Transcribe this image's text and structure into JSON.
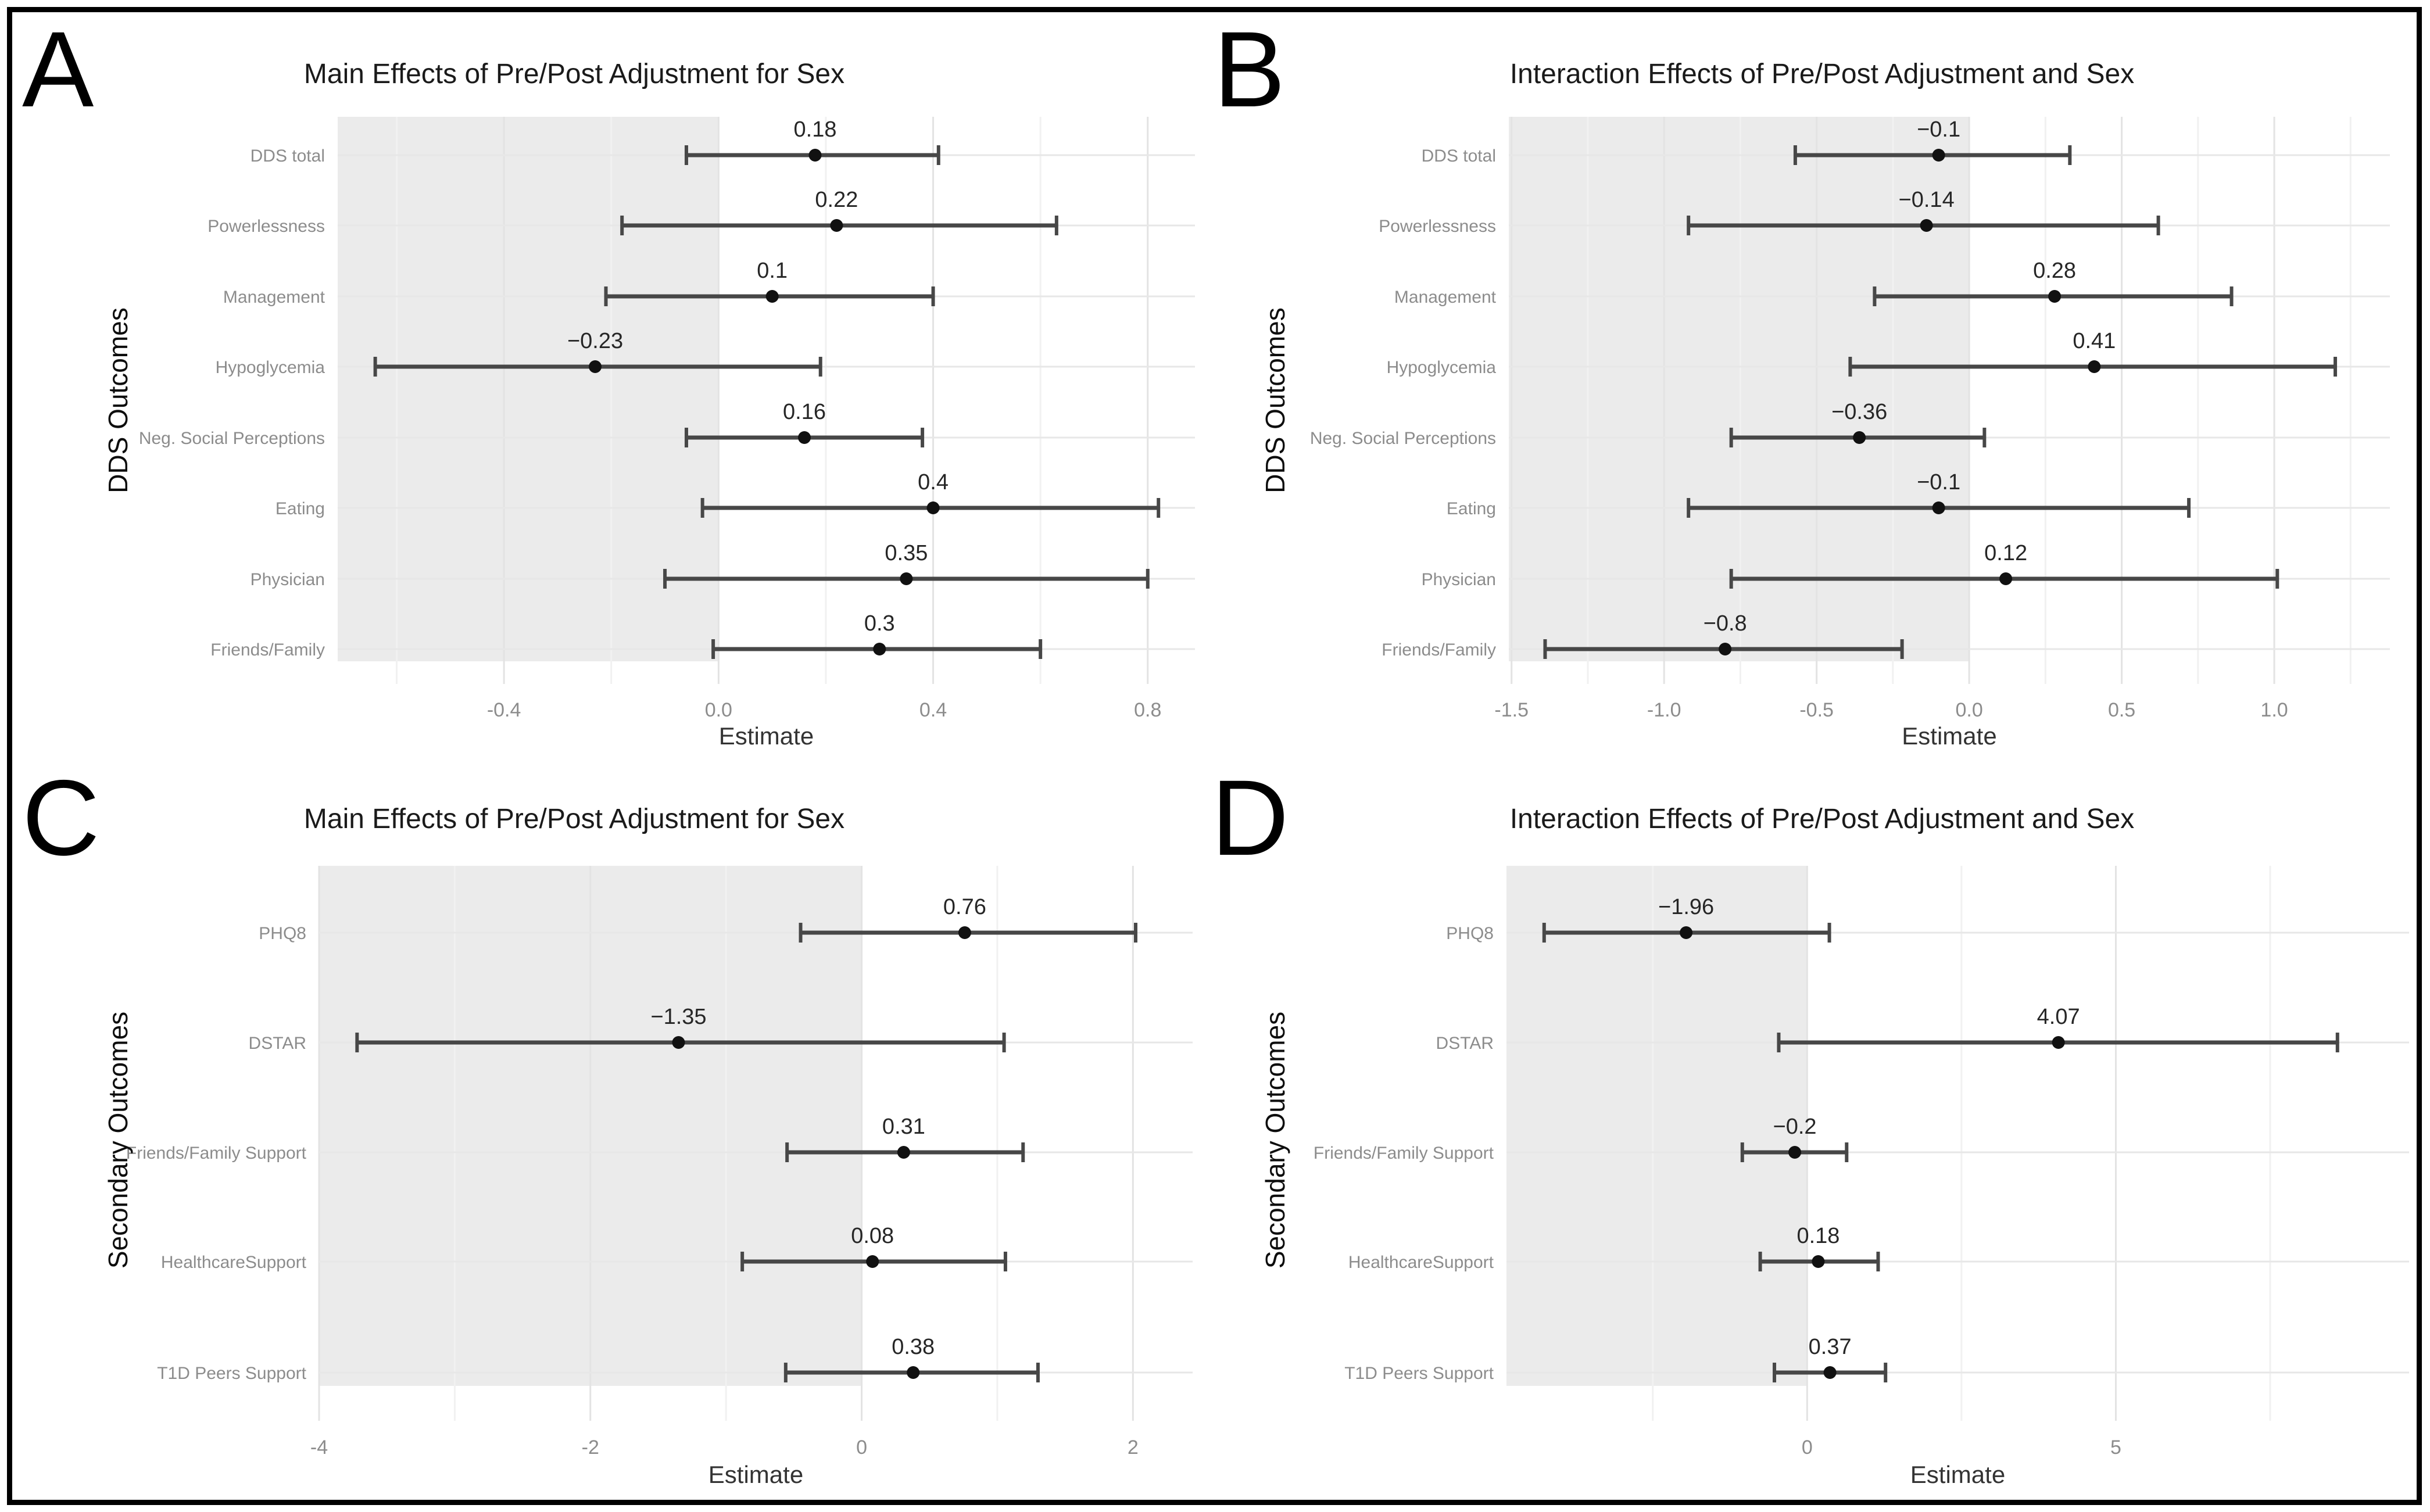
{
  "figure": {
    "background": "#ffffff",
    "border_color": "#000000"
  },
  "colors": {
    "shade": "#ebebeb",
    "grid_major": "#e3e3e3",
    "grid_minor": "#f1f1f1",
    "row_line": "#e7e7e7",
    "bar": "#474747",
    "point": "#111111",
    "value_label": "#262626",
    "axis_text": "#8c8c8c",
    "xlab": "#333333",
    "title": "#1a1a1a"
  },
  "chart_data": [
    {
      "type": "scatter",
      "style": "forest-plot",
      "panel": "A",
      "title": "Main Effects of Pre/Post Adjustment for Sex",
      "xlabel": "Estimate",
      "ylabel": "DDS Outcomes",
      "grid": true,
      "legend": null,
      "categories": [
        "DDS total",
        "Powerlessness",
        "Management",
        "Hypoglycemia",
        "Neg. Social Perceptions",
        "Eating",
        "Physician",
        "Friends/Family"
      ],
      "estimates": [
        0.18,
        0.22,
        0.1,
        -0.23,
        0.16,
        0.4,
        0.35,
        0.3
      ],
      "ci_low": [
        -0.06,
        -0.18,
        -0.21,
        -0.64,
        -0.06,
        -0.03,
        -0.1,
        -0.01
      ],
      "ci_high": [
        0.41,
        0.63,
        0.4,
        0.19,
        0.38,
        0.82,
        0.8,
        0.6
      ],
      "value_labels": [
        "0.18",
        "0.22",
        "0.1",
        "−0.23",
        "0.16",
        "0.4",
        "0.35",
        "0.3"
      ],
      "xlim": [
        -0.71,
        0.888
      ],
      "xticks": [
        {
          "v": -0.4,
          "label": "-0.4"
        },
        {
          "v": 0.0,
          "label": "0.0"
        },
        {
          "v": 0.4,
          "label": "0.4"
        },
        {
          "v": 0.8,
          "label": "0.8"
        }
      ],
      "minor_grid": [
        -0.6,
        -0.2,
        0.2,
        0.6
      ],
      "shade_range": [
        -0.71,
        0
      ]
    },
    {
      "type": "scatter",
      "style": "forest-plot",
      "panel": "B",
      "title": "Interaction Effects of Pre/Post Adjustment and Sex",
      "xlabel": "Estimate",
      "ylabel": "DDS Outcomes",
      "grid": true,
      "legend": null,
      "categories": [
        "DDS total",
        "Powerlessness",
        "Management",
        "Hypoglycemia",
        "Neg. Social Perceptions",
        "Eating",
        "Physician",
        "Friends/Family"
      ],
      "estimates": [
        -0.1,
        -0.14,
        0.28,
        0.41,
        -0.36,
        -0.1,
        0.12,
        -0.8
      ],
      "ci_low": [
        -0.57,
        -0.92,
        -0.31,
        -0.39,
        -0.78,
        -0.92,
        -0.78,
        -1.39
      ],
      "ci_high": [
        0.33,
        0.62,
        0.86,
        1.2,
        0.05,
        0.72,
        1.01,
        -0.22
      ],
      "value_labels": [
        "−0.1",
        "−0.14",
        "0.28",
        "0.41",
        "−0.36",
        "−0.1",
        "0.12",
        "−0.8"
      ],
      "xlim": [
        -1.509,
        1.379
      ],
      "xticks": [
        {
          "v": -1.5,
          "label": "-1.5"
        },
        {
          "v": -1.0,
          "label": "-1.0"
        },
        {
          "v": -0.5,
          "label": "-0.5"
        },
        {
          "v": 0.0,
          "label": "0.0"
        },
        {
          "v": 0.5,
          "label": "0.5"
        },
        {
          "v": 1.0,
          "label": "1.0"
        }
      ],
      "minor_grid": [
        -1.25,
        -0.75,
        -0.25,
        0.25,
        0.75,
        1.25
      ],
      "shade_range": [
        -1.509,
        0
      ]
    },
    {
      "type": "scatter",
      "style": "forest-plot",
      "panel": "C",
      "title": "Main Effects of Pre/Post Adjustment for Sex",
      "xlabel": "Estimate",
      "ylabel": "Secondary Outcomes",
      "grid": true,
      "legend": null,
      "categories": [
        "PHQ8",
        "DSTAR",
        "Friends/Family Support",
        "HealthcareSupport",
        "T1D Peers Support"
      ],
      "estimates": [
        0.76,
        -1.35,
        0.31,
        0.08,
        0.38
      ],
      "ci_low": [
        -0.45,
        -3.72,
        -0.55,
        -0.88,
        -0.56
      ],
      "ci_high": [
        2.02,
        1.05,
        1.19,
        1.06,
        1.3
      ],
      "value_labels": [
        "0.76",
        "−1.35",
        "0.31",
        "0.08",
        "0.38"
      ],
      "xlim": [
        -4.0,
        2.44
      ],
      "xticks": [
        {
          "v": -4,
          "label": "-4"
        },
        {
          "v": -2,
          "label": "-2"
        },
        {
          "v": 0,
          "label": "0"
        },
        {
          "v": 2,
          "label": "2"
        }
      ],
      "minor_grid": [
        -3,
        -1,
        1
      ],
      "shade_range": [
        -4.0,
        0
      ]
    },
    {
      "type": "scatter",
      "style": "forest-plot",
      "panel": "D",
      "title": "Interaction Effects of Pre/Post Adjustment and Sex",
      "xlabel": "Estimate",
      "ylabel": "Secondary Outcomes",
      "grid": true,
      "legend": null,
      "categories": [
        "PHQ8",
        "DSTAR",
        "Friends/Family Support",
        "HealthcareSupport",
        "T1D Peers Support"
      ],
      "estimates": [
        -1.96,
        4.07,
        -0.2,
        0.18,
        0.37
      ],
      "ci_low": [
        -4.26,
        -0.46,
        -1.05,
        -0.76,
        -0.53
      ],
      "ci_high": [
        0.36,
        8.59,
        0.64,
        1.15,
        1.27
      ],
      "value_labels": [
        "−1.96",
        "4.07",
        "−0.2",
        "0.18",
        "0.37"
      ],
      "xlim": [
        -4.87,
        9.75
      ],
      "xticks": [
        {
          "v": 0,
          "label": "0"
        },
        {
          "v": 5,
          "label": "5"
        }
      ],
      "minor_grid": [
        -2.5,
        2.5,
        7.5
      ],
      "shade_range": [
        -4.87,
        0
      ]
    }
  ]
}
